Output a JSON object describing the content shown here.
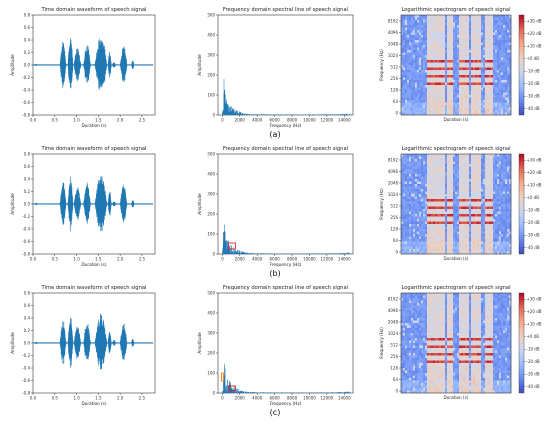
{
  "figure": {
    "rows": [
      {
        "caption": "(a)"
      },
      {
        "caption": "(b)"
      },
      {
        "caption": "(c)"
      }
    ]
  },
  "chart_data": [
    {
      "panel": "waveform",
      "type": "line",
      "title": "Time domain waveform of speech signal",
      "xlabel": "Duration (s)",
      "ylabel": "Amplitude",
      "xlim": [
        0.0,
        2.8
      ],
      "ylim": [
        -0.8,
        0.8
      ],
      "x_ticks": [
        "0.0",
        "0.5",
        "1.0",
        "1.5",
        "2.0",
        "2.5"
      ],
      "x_tick_values": [
        0.0,
        0.5,
        1.0,
        1.5,
        2.0,
        2.5
      ],
      "y_ticks": [
        "0.8",
        "0.6",
        "0.4",
        "0.2",
        "0.0",
        "-0.2",
        "-0.4",
        "-0.6",
        "-0.8"
      ],
      "y_tick_values": [
        0.8,
        0.6,
        0.4,
        0.2,
        0.0,
        -0.2,
        -0.4,
        -0.6,
        -0.8
      ],
      "line_color": "#1f77b4",
      "duration": 2.75,
      "bursts": [
        {
          "start": 0.05,
          "end": 0.1,
          "amplitude": 0.02
        },
        {
          "start": 0.62,
          "end": 0.76,
          "amplitude": 0.38
        },
        {
          "start": 0.8,
          "end": 0.92,
          "amplitude": 0.45
        },
        {
          "start": 0.94,
          "end": 1.1,
          "amplitude": 0.28
        },
        {
          "start": 1.16,
          "end": 1.32,
          "amplitude": 0.35
        },
        {
          "start": 1.42,
          "end": 1.7,
          "amplitude": 0.48
        },
        {
          "start": 1.72,
          "end": 1.8,
          "amplitude": 0.22
        },
        {
          "start": 1.82,
          "end": 1.9,
          "amplitude": 0.05
        },
        {
          "start": 2.0,
          "end": 2.16,
          "amplitude": 0.32
        },
        {
          "start": 2.26,
          "end": 2.32,
          "amplitude": 0.08
        }
      ]
    },
    {
      "panel": "spectrum",
      "type": "line",
      "title": "Frequency domain spectral line of speech signal",
      "xlabel": "Frequency (Hz)",
      "ylabel": "Amplitude",
      "xlim": [
        -500,
        15000
      ],
      "ylim": [
        0,
        500
      ],
      "x_ticks": [
        "0",
        "2000",
        "4000",
        "6000",
        "8000",
        "10000",
        "12000",
        "14000"
      ],
      "x_tick_values": [
        0,
        2000,
        4000,
        6000,
        8000,
        10000,
        12000,
        14000
      ],
      "y_ticks": [
        "0",
        "100",
        "200",
        "300",
        "400",
        "500"
      ],
      "y_tick_values": [
        0,
        100,
        200,
        300,
        400,
        500
      ],
      "line_color": "#1f77b4",
      "envelope": [
        {
          "x": 0,
          "y": 10
        },
        {
          "x": 80,
          "y": 40
        },
        {
          "x": 150,
          "y": 200
        },
        {
          "x": 250,
          "y": 150
        },
        {
          "x": 350,
          "y": 110
        },
        {
          "x": 500,
          "y": 90
        },
        {
          "x": 700,
          "y": 70
        },
        {
          "x": 900,
          "y": 55
        },
        {
          "x": 1200,
          "y": 40
        },
        {
          "x": 1500,
          "y": 28
        },
        {
          "x": 2000,
          "y": 18
        },
        {
          "x": 2500,
          "y": 10
        },
        {
          "x": 3000,
          "y": 6
        },
        {
          "x": 4000,
          "y": 4
        },
        {
          "x": 6000,
          "y": 3
        },
        {
          "x": 10000,
          "y": 3
        },
        {
          "x": 13000,
          "y": 4
        },
        {
          "x": 14000,
          "y": 6
        },
        {
          "x": 14500,
          "y": 8
        },
        {
          "x": 14700,
          "y": 3
        }
      ],
      "highlights": [
        [],
        [
          {
            "x0": 700,
            "x1": 1500,
            "y0": 25,
            "y1": 55,
            "color": "#d62728"
          }
        ],
        [
          {
            "x0": 700,
            "x1": 1500,
            "y0": 12,
            "y1": 35,
            "color": "#d62728"
          },
          {
            "x0": -100,
            "x1": 150,
            "y0": 60,
            "y1": 100,
            "color": "#ff7f0e"
          }
        ]
      ]
    },
    {
      "panel": "spectrogram",
      "type": "heatmap",
      "title": "Logarithmic spectrogram of speech signal",
      "xlabel": "Duration (s)",
      "ylabel": "Frequency (Hz)",
      "y_ticks": [
        "8192",
        "4096",
        "2048",
        "1024",
        "512",
        "256",
        "128",
        "64",
        "0"
      ],
      "colorbar_ticks": [
        "+30 dB",
        "+20 dB",
        "+10 dB",
        "+0 dB",
        "-10 dB",
        "-20 dB",
        "-30 dB",
        "-40 dB"
      ],
      "colorbar_values": [
        30,
        20,
        10,
        0,
        -10,
        -20,
        -30,
        -40
      ],
      "colormap": [
        "#3b4cc0",
        "#6788ee",
        "#9abbff",
        "#c9d7f0",
        "#edd1c2",
        "#f7a889",
        "#e26952",
        "#b40426"
      ],
      "range_db": [
        -45,
        35
      ],
      "voiced_segments": [
        {
          "start": 0.23,
          "end": 0.29
        },
        {
          "start": 0.3,
          "end": 0.34
        },
        {
          "start": 0.35,
          "end": 0.4
        },
        {
          "start": 0.42,
          "end": 0.47
        },
        {
          "start": 0.52,
          "end": 0.62
        },
        {
          "start": 0.64,
          "end": 0.72
        },
        {
          "start": 0.77,
          "end": 0.83
        }
      ]
    }
  ]
}
